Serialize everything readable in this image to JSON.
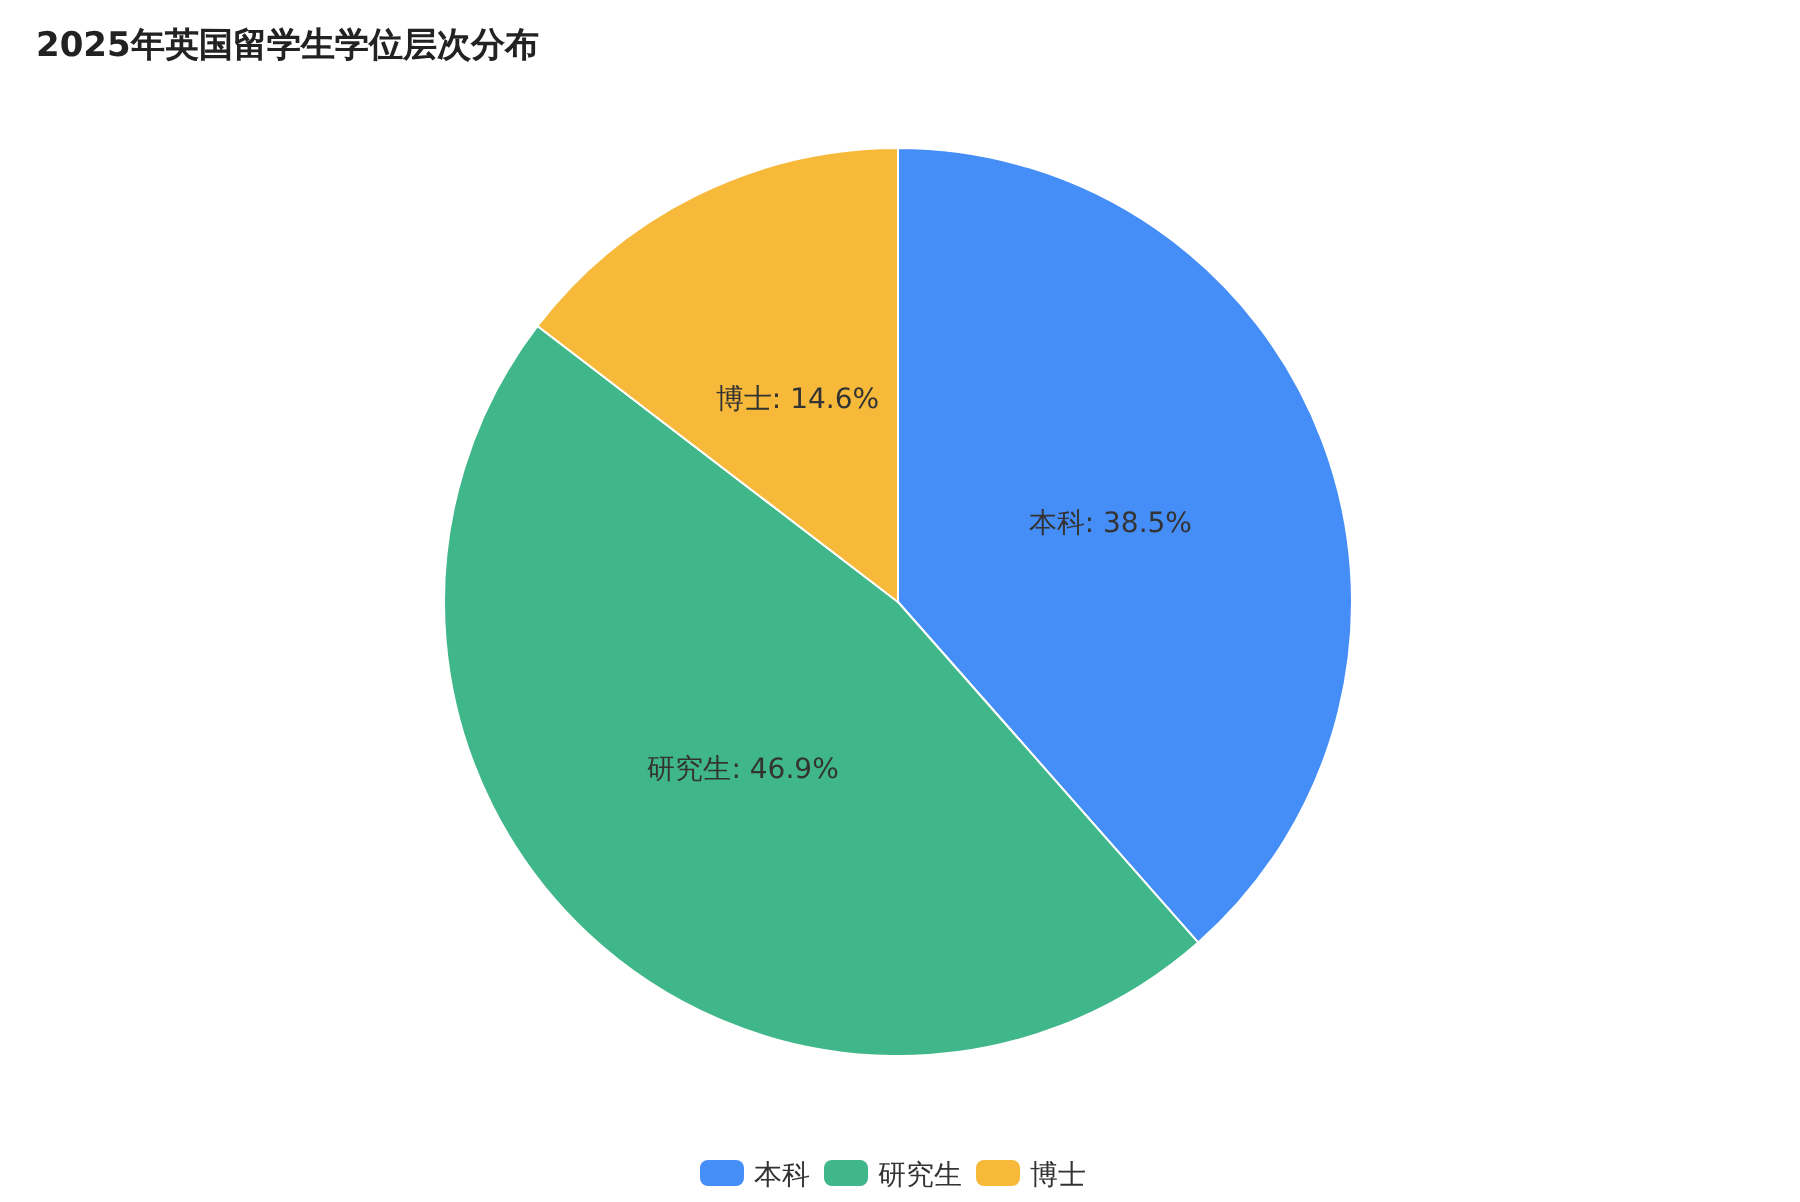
{
  "chart_data": {
    "type": "pie",
    "title": "2025年英国留学生学位层次分布",
    "categories": [
      "本科",
      "研究生",
      "博士"
    ],
    "values": [
      38.5,
      46.9,
      14.6
    ],
    "value_labels": [
      "本科: 38.5%",
      "研究生: 46.9%",
      "博士: 14.6%"
    ],
    "colors": [
      "#468ef7",
      "#40b68b",
      "#f7b93a"
    ],
    "legend": "bottom"
  }
}
